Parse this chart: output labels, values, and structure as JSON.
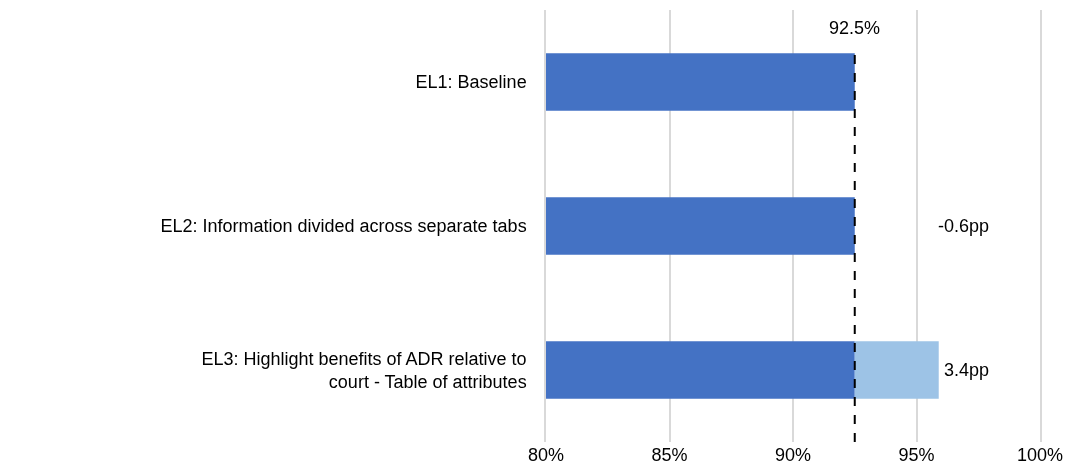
{
  "chart_data": {
    "type": "bar",
    "orientation": "horizontal",
    "categories": [
      "EL1: Baseline",
      "EL2: Information divided across separate tabs",
      "EL3: Highlight benefits of ADR relative to court - Table of attributes"
    ],
    "series": [
      {
        "color": "#4472c4",
        "values": [
          92.5,
          92.5,
          92.5
        ]
      },
      {
        "color": "#9dc3e6",
        "values": [
          null,
          null,
          3.4
        ],
        "base": [
          null,
          null,
          92.5
        ],
        "value_labels": [
          null,
          "-0.6pp",
          "3.4pp"
        ]
      }
    ],
    "xlim": [
      80,
      100
    ],
    "xticks": [
      {
        "value": 80,
        "label": "80%"
      },
      {
        "value": 85,
        "label": "85%"
      },
      {
        "value": 90,
        "label": "90%"
      },
      {
        "value": 95,
        "label": "95%"
      },
      {
        "value": 100,
        "label": "100%"
      }
    ],
    "ref_lines": [
      {
        "axis": "x",
        "value": 92.5,
        "label": "92.5%",
        "color": "#000000",
        "line_style": "dashed"
      }
    ],
    "grid": "x"
  }
}
